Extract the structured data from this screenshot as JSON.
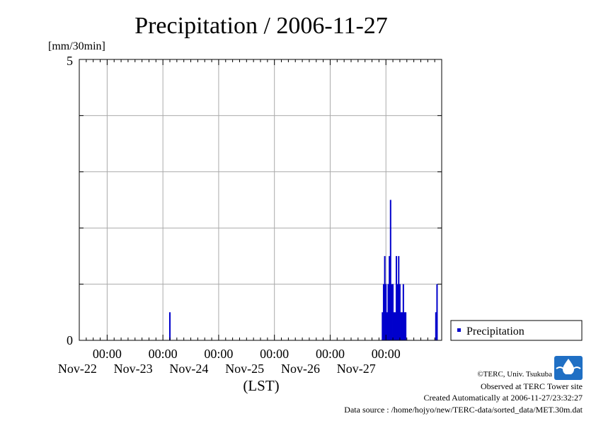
{
  "chart_data": {
    "type": "bar",
    "title": "Precipitation / 2006-11-27",
    "ylabel": "[mm/30min]",
    "xlabel": "(LST)",
    "ylim": [
      0,
      5
    ],
    "y_ticks": [
      "0",
      "5"
    ],
    "x_range": [
      "2006-11-21 12:00",
      "2006-11-28 00:00"
    ],
    "x_ticks": [
      {
        "time": "2006-11-22 00:00",
        "hour_label": "00:00",
        "date_label": "Nov-22"
      },
      {
        "time": "2006-11-23 00:00",
        "hour_label": "00:00",
        "date_label": "Nov-23"
      },
      {
        "time": "2006-11-24 00:00",
        "hour_label": "00:00",
        "date_label": "Nov-24"
      },
      {
        "time": "2006-11-25 00:00",
        "hour_label": "00:00",
        "date_label": "Nov-25"
      },
      {
        "time": "2006-11-26 00:00",
        "hour_label": "00:00",
        "date_label": "Nov-26"
      },
      {
        "time": "2006-11-27 00:00",
        "hour_label": "00:00",
        "date_label": "Nov-27"
      }
    ],
    "grid": true,
    "legend": {
      "position": "right",
      "entries": [
        "Precipitation"
      ]
    },
    "colors": {
      "series": "#0000cc"
    },
    "series": [
      {
        "name": "Precipitation",
        "points": [
          {
            "x": "2006-11-23 03:00",
            "y": 0.5
          },
          {
            "x": "2006-11-26 22:30",
            "y": 0.5
          },
          {
            "x": "2006-11-26 23:00",
            "y": 1.0
          },
          {
            "x": "2006-11-26 23:30",
            "y": 1.5
          },
          {
            "x": "2006-11-27 00:00",
            "y": 1.0
          },
          {
            "x": "2006-11-27 00:30",
            "y": 0.5
          },
          {
            "x": "2006-11-27 01:00",
            "y": 1.0
          },
          {
            "x": "2006-11-27 01:30",
            "y": 1.5
          },
          {
            "x": "2006-11-27 02:00",
            "y": 2.5
          },
          {
            "x": "2006-11-27 02:30",
            "y": 1.0
          },
          {
            "x": "2006-11-27 03:00",
            "y": 1.0
          },
          {
            "x": "2006-11-27 03:30",
            "y": 0.5
          },
          {
            "x": "2006-11-27 04:00",
            "y": 0.5
          },
          {
            "x": "2006-11-27 04:30",
            "y": 1.5
          },
          {
            "x": "2006-11-27 05:00",
            "y": 1.0
          },
          {
            "x": "2006-11-27 05:30",
            "y": 1.5
          },
          {
            "x": "2006-11-27 06:00",
            "y": 1.0
          },
          {
            "x": "2006-11-27 06:30",
            "y": 0.5
          },
          {
            "x": "2006-11-27 07:00",
            "y": 0.5
          },
          {
            "x": "2006-11-27 07:30",
            "y": 1.0
          },
          {
            "x": "2006-11-27 08:00",
            "y": 0.5
          },
          {
            "x": "2006-11-27 08:30",
            "y": 0.5
          },
          {
            "x": "2006-11-27 21:30",
            "y": 0.5
          },
          {
            "x": "2006-11-27 22:00",
            "y": 1.0
          }
        ]
      }
    ]
  },
  "footer": {
    "copyright": "©TERC, Univ. Tsukuba",
    "observed": "Observed at TERC Tower site",
    "created": "Created Automatically at 2006-11-27/23:32:27",
    "source": "Data source : /home/hojyo/new/TERC-data/sorted_data/MET.30m.dat"
  },
  "logo": {
    "text": "TERC",
    "color": "#1f6fc4"
  }
}
